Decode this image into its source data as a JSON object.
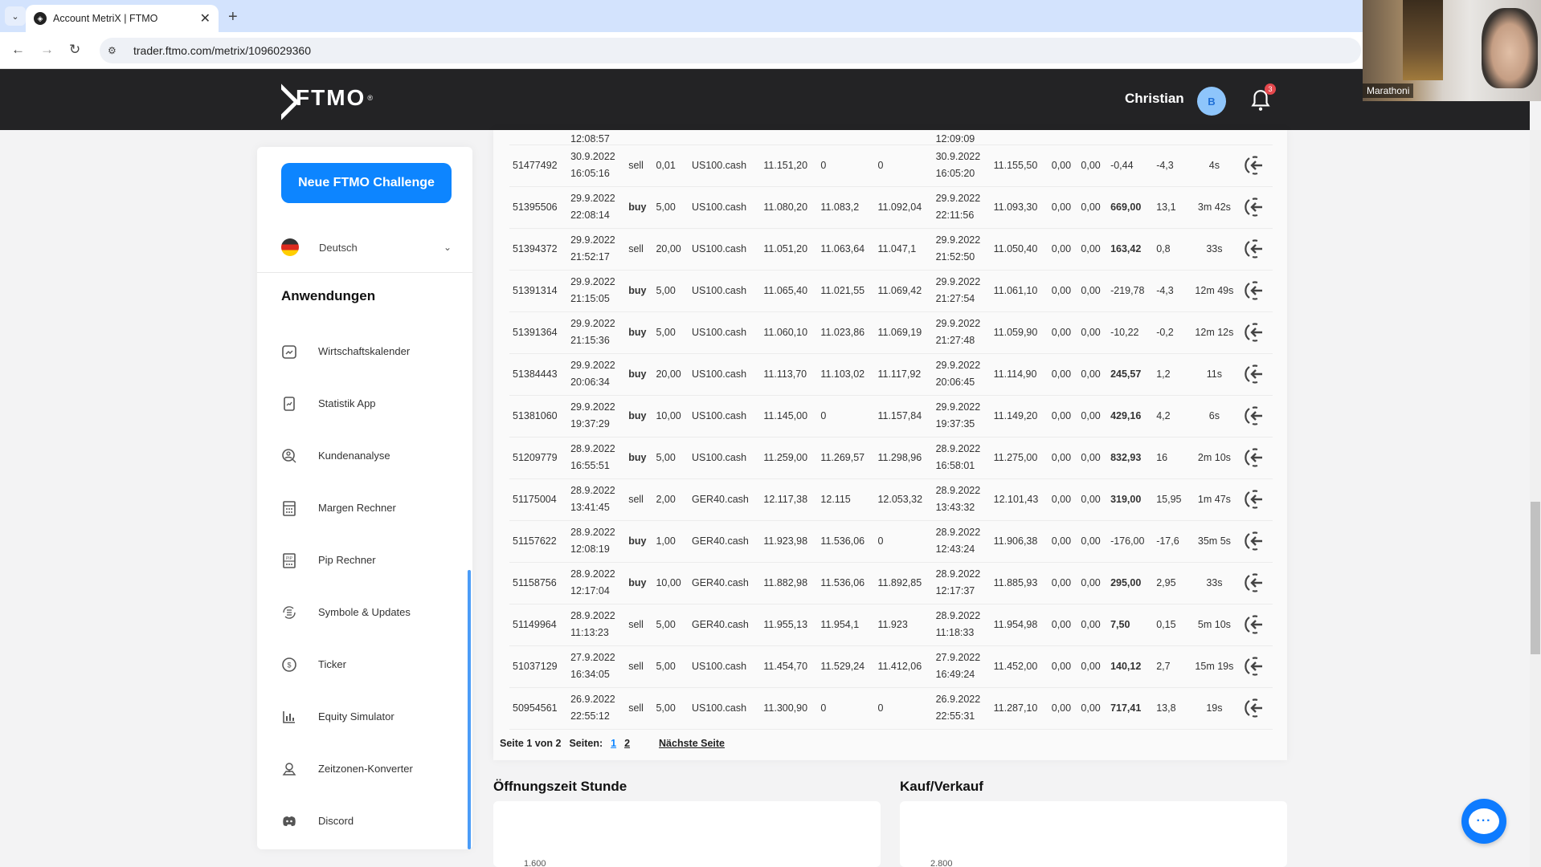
{
  "browser": {
    "tab_title": "Account MetriX | FTMO",
    "url": "trader.ftmo.com/metrix/1096029360",
    "new_tab": "+",
    "close_tab": "✕"
  },
  "webcam": {
    "label": "Marathoni"
  },
  "header": {
    "logo_text": "FTMO",
    "logo_reg": "®",
    "user_name": "Christian",
    "avatar_initial": "B",
    "notification_count": "3"
  },
  "sidebar": {
    "cta_label": "Neue FTMO Challenge",
    "language": "Deutsch",
    "section_title": "Anwendungen",
    "items": [
      {
        "label": "Wirtschaftskalender",
        "icon": "calendar-chart-icon"
      },
      {
        "label": "Statistik App",
        "icon": "phone-chart-icon"
      },
      {
        "label": "Kundenanalyse",
        "icon": "user-search-icon"
      },
      {
        "label": "Margen Rechner",
        "icon": "calculator-icon"
      },
      {
        "label": "Pip Rechner",
        "icon": "pip-calculator-icon"
      },
      {
        "label": "Symbole & Updates",
        "icon": "list-refresh-icon"
      },
      {
        "label": "Ticker",
        "icon": "dollar-circle-icon"
      },
      {
        "label": "Equity Simulator",
        "icon": "bar-chart-icon"
      },
      {
        "label": "Zeitzonen-Konverter",
        "icon": "location-pin-icon"
      },
      {
        "label": "Discord",
        "icon": "discord-icon"
      }
    ]
  },
  "table": {
    "partial_row": {
      "open_time": "12:08:57",
      "close_time": "12:09:09"
    },
    "rows": [
      {
        "ticket": "51477492",
        "open_date": "30.9.2022",
        "open_time": "16:05:16",
        "type": "sell",
        "volume": "0,01",
        "symbol": "US100.cash",
        "open_price": "11.151,20",
        "sl": "0",
        "tp": "0",
        "close_date": "30.9.2022",
        "close_time": "16:05:20",
        "close_price": "11.155,50",
        "swap": "0,00",
        "commission": "0,00",
        "profit": "-0,44",
        "pips": "-4,3",
        "duration": "4s"
      },
      {
        "ticket": "51395506",
        "open_date": "29.9.2022",
        "open_time": "22:08:14",
        "type": "buy",
        "volume": "5,00",
        "symbol": "US100.cash",
        "open_price": "11.080,20",
        "sl": "11.083,2",
        "tp": "11.092,04",
        "close_date": "29.9.2022",
        "close_time": "22:11:56",
        "close_price": "11.093,30",
        "swap": "0,00",
        "commission": "0,00",
        "profit": "669,00",
        "pips": "13,1",
        "duration": "3m 42s"
      },
      {
        "ticket": "51394372",
        "open_date": "29.9.2022",
        "open_time": "21:52:17",
        "type": "sell",
        "volume": "20,00",
        "symbol": "US100.cash",
        "open_price": "11.051,20",
        "sl": "11.063,64",
        "tp": "11.047,1",
        "close_date": "29.9.2022",
        "close_time": "21:52:50",
        "close_price": "11.050,40",
        "swap": "0,00",
        "commission": "0,00",
        "profit": "163,42",
        "pips": "0,8",
        "duration": "33s"
      },
      {
        "ticket": "51391314",
        "open_date": "29.9.2022",
        "open_time": "21:15:05",
        "type": "buy",
        "volume": "5,00",
        "symbol": "US100.cash",
        "open_price": "11.065,40",
        "sl": "11.021,55",
        "tp": "11.069,42",
        "close_date": "29.9.2022",
        "close_time": "21:27:54",
        "close_price": "11.061,10",
        "swap": "0,00",
        "commission": "0,00",
        "profit": "-219,78",
        "pips": "-4,3",
        "duration": "12m 49s"
      },
      {
        "ticket": "51391364",
        "open_date": "29.9.2022",
        "open_time": "21:15:36",
        "type": "buy",
        "volume": "5,00",
        "symbol": "US100.cash",
        "open_price": "11.060,10",
        "sl": "11.023,86",
        "tp": "11.069,19",
        "close_date": "29.9.2022",
        "close_time": "21:27:48",
        "close_price": "11.059,90",
        "swap": "0,00",
        "commission": "0,00",
        "profit": "-10,22",
        "pips": "-0,2",
        "duration": "12m 12s"
      },
      {
        "ticket": "51384443",
        "open_date": "29.9.2022",
        "open_time": "20:06:34",
        "type": "buy",
        "volume": "20,00",
        "symbol": "US100.cash",
        "open_price": "11.113,70",
        "sl": "11.103,02",
        "tp": "11.117,92",
        "close_date": "29.9.2022",
        "close_time": "20:06:45",
        "close_price": "11.114,90",
        "swap": "0,00",
        "commission": "0,00",
        "profit": "245,57",
        "pips": "1,2",
        "duration": "11s"
      },
      {
        "ticket": "51381060",
        "open_date": "29.9.2022",
        "open_time": "19:37:29",
        "type": "buy",
        "volume": "10,00",
        "symbol": "US100.cash",
        "open_price": "11.145,00",
        "sl": "0",
        "tp": "11.157,84",
        "close_date": "29.9.2022",
        "close_time": "19:37:35",
        "close_price": "11.149,20",
        "swap": "0,00",
        "commission": "0,00",
        "profit": "429,16",
        "pips": "4,2",
        "duration": "6s"
      },
      {
        "ticket": "51209779",
        "open_date": "28.9.2022",
        "open_time": "16:55:51",
        "type": "buy",
        "volume": "5,00",
        "symbol": "US100.cash",
        "open_price": "11.259,00",
        "sl": "11.269,57",
        "tp": "11.298,96",
        "close_date": "28.9.2022",
        "close_time": "16:58:01",
        "close_price": "11.275,00",
        "swap": "0,00",
        "commission": "0,00",
        "profit": "832,93",
        "pips": "16",
        "duration": "2m 10s"
      },
      {
        "ticket": "51175004",
        "open_date": "28.9.2022",
        "open_time": "13:41:45",
        "type": "sell",
        "volume": "2,00",
        "symbol": "GER40.cash",
        "open_price": "12.117,38",
        "sl": "12.115",
        "tp": "12.053,32",
        "close_date": "28.9.2022",
        "close_time": "13:43:32",
        "close_price": "12.101,43",
        "swap": "0,00",
        "commission": "0,00",
        "profit": "319,00",
        "pips": "15,95",
        "duration": "1m 47s"
      },
      {
        "ticket": "51157622",
        "open_date": "28.9.2022",
        "open_time": "12:08:19",
        "type": "buy",
        "volume": "1,00",
        "symbol": "GER40.cash",
        "open_price": "11.923,98",
        "sl": "11.536,06",
        "tp": "0",
        "close_date": "28.9.2022",
        "close_time": "12:43:24",
        "close_price": "11.906,38",
        "swap": "0,00",
        "commission": "0,00",
        "profit": "-176,00",
        "pips": "-17,6",
        "duration": "35m 5s"
      },
      {
        "ticket": "51158756",
        "open_date": "28.9.2022",
        "open_time": "12:17:04",
        "type": "buy",
        "volume": "10,00",
        "symbol": "GER40.cash",
        "open_price": "11.882,98",
        "sl": "11.536,06",
        "tp": "11.892,85",
        "close_date": "28.9.2022",
        "close_time": "12:17:37",
        "close_price": "11.885,93",
        "swap": "0,00",
        "commission": "0,00",
        "profit": "295,00",
        "pips": "2,95",
        "duration": "33s"
      },
      {
        "ticket": "51149964",
        "open_date": "28.9.2022",
        "open_time": "11:13:23",
        "type": "sell",
        "volume": "5,00",
        "symbol": "GER40.cash",
        "open_price": "11.955,13",
        "sl": "11.954,1",
        "tp": "11.923",
        "close_date": "28.9.2022",
        "close_time": "11:18:33",
        "close_price": "11.954,98",
        "swap": "0,00",
        "commission": "0,00",
        "profit": "7,50",
        "pips": "0,15",
        "duration": "5m 10s"
      },
      {
        "ticket": "51037129",
        "open_date": "27.9.2022",
        "open_time": "16:34:05",
        "type": "sell",
        "volume": "5,00",
        "symbol": "US100.cash",
        "open_price": "11.454,70",
        "sl": "11.529,24",
        "tp": "11.412,06",
        "close_date": "27.9.2022",
        "close_time": "16:49:24",
        "close_price": "11.452,00",
        "swap": "0,00",
        "commission": "0,00",
        "profit": "140,12",
        "pips": "2,7",
        "duration": "15m 19s"
      },
      {
        "ticket": "50954561",
        "open_date": "26.9.2022",
        "open_time": "22:55:12",
        "type": "sell",
        "volume": "5,00",
        "symbol": "US100.cash",
        "open_price": "11.300,90",
        "sl": "0",
        "tp": "0",
        "close_date": "26.9.2022",
        "close_time": "22:55:31",
        "close_price": "11.287,10",
        "swap": "0,00",
        "commission": "0,00",
        "profit": "717,41",
        "pips": "13,8",
        "duration": "19s"
      }
    ]
  },
  "pagination": {
    "summary": "Seite 1 von 2",
    "pages_label": "Seiten:",
    "pages": [
      "1",
      "2"
    ],
    "current_page": "1",
    "next_label": "Nächste Seite"
  },
  "charts": [
    {
      "title": "Öffnungszeit Stunde",
      "first_tick": "1.600"
    },
    {
      "title": "Kauf/Verkauf",
      "first_tick": "2.800"
    }
  ],
  "colors": {
    "accent": "#0d85ff",
    "buy_profit": "#1fb8a4",
    "sell_loss": "#e5484d",
    "header_bg": "#232325"
  }
}
